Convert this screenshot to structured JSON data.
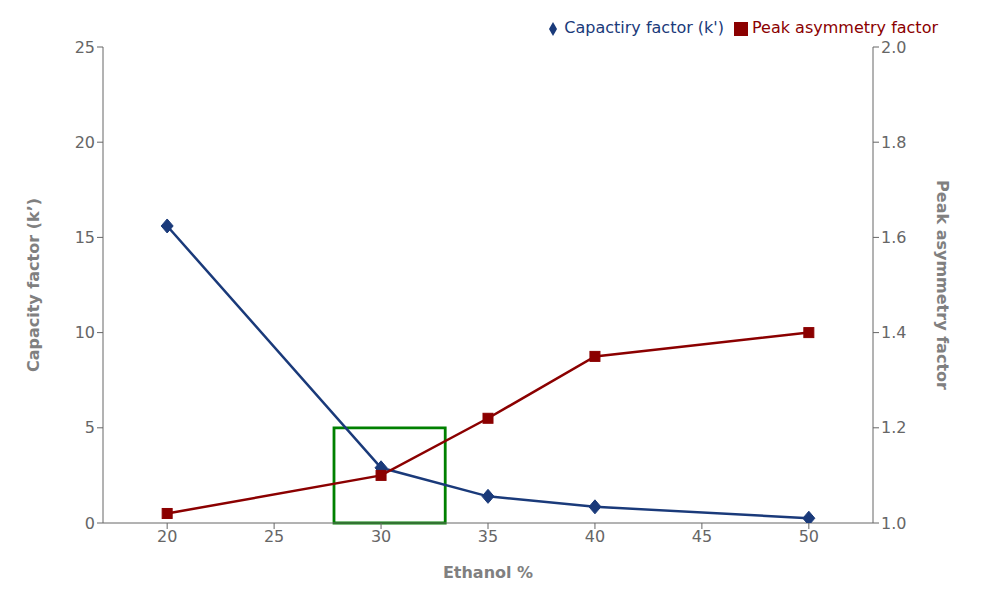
{
  "chart_data": {
    "type": "line",
    "x": [
      20,
      30,
      35,
      40,
      50
    ],
    "xlabel": "Ethanol %",
    "ylabel": "Capacity factor (k’)",
    "y2label": "Peak asymmetry factor",
    "series": [
      {
        "name": "Capactiry factor (k')",
        "color": "#1a3a7a",
        "marker": "diamond",
        "values": [
          15.6,
          2.9,
          1.4,
          0.85,
          0.25
        ]
      },
      {
        "name": "Peak asymmetry factor",
        "color": "#8b0000",
        "marker": "square",
        "axis": "y2",
        "values": [
          1.02,
          1.1,
          1.22,
          1.35,
          1.4
        ]
      }
    ],
    "xlim": [
      17,
      53
    ],
    "xticks": [
      20,
      25,
      30,
      35,
      40,
      45,
      50
    ],
    "ylim": [
      0,
      25
    ],
    "yticks": [
      0,
      5,
      10,
      15,
      20,
      25
    ],
    "y2lim": [
      1.0,
      2.0
    ],
    "y2ticks": [
      {
        "value": 1.0,
        "label": "1.0"
      },
      1.2,
      1.4,
      1.6,
      1.8,
      {
        "value": 2.0,
        "label": "2.0"
      }
    ],
    "legend": "upper right",
    "grid": false,
    "annotations": [
      {
        "type": "rect",
        "x": 27.8,
        "y": 0.0,
        "width": 5.2,
        "height": 5.0,
        "color": "green"
      }
    ]
  }
}
